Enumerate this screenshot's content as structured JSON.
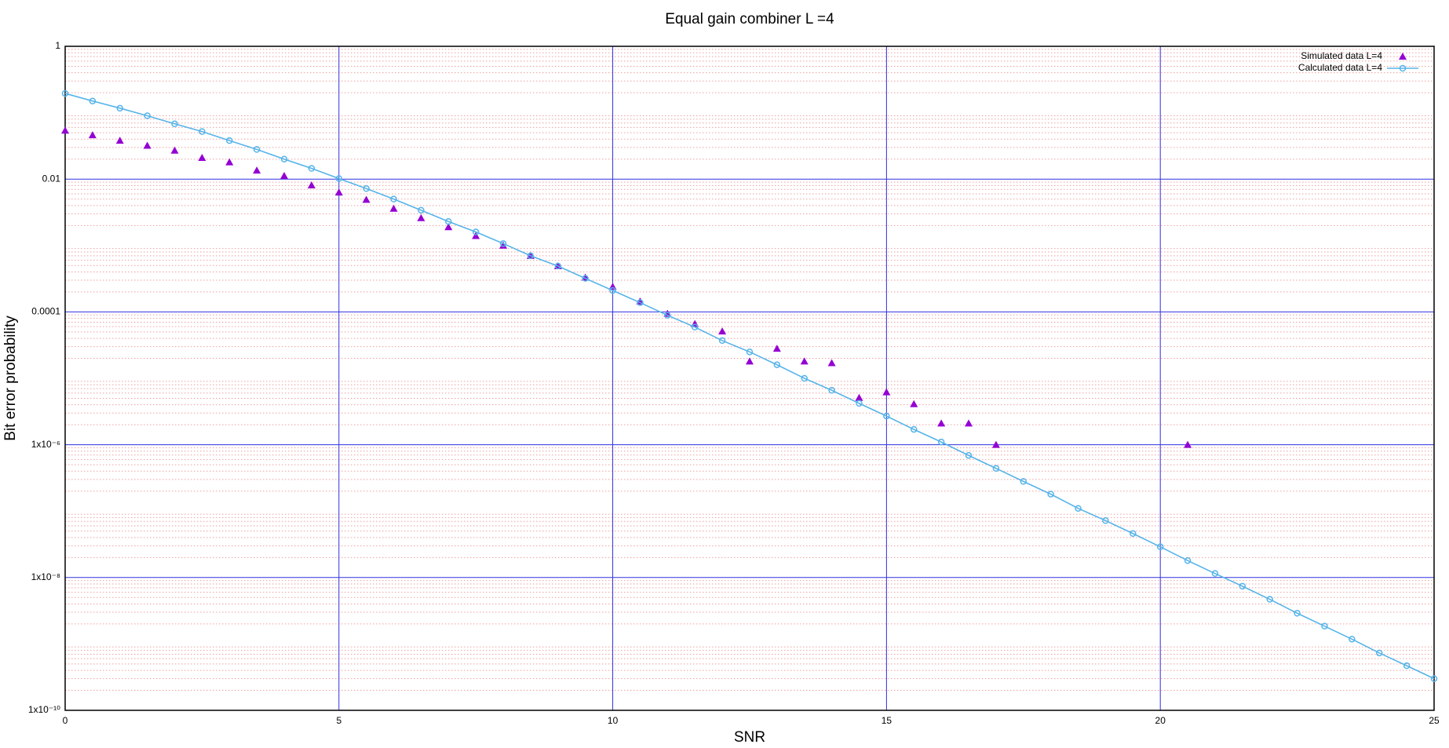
{
  "chart_data": {
    "type": "scatter",
    "title": "Equal gain combiner L =4",
    "x_label": "SNR",
    "y_label": "Bit error probability",
    "log_y": true,
    "grid": true,
    "minor_grid": true,
    "legend": "top-right",
    "xlim": [
      0,
      25
    ],
    "xticks": [
      0,
      5,
      10,
      15,
      20,
      25
    ],
    "ylim": [
      1e-10,
      1
    ],
    "yticks": [
      {
        "value": 1e-10,
        "label": "1x10⁻¹⁰"
      },
      {
        "value": 1e-08,
        "label": "1x10⁻⁸"
      },
      {
        "value": 1e-06,
        "label": "1x10⁻⁶"
      },
      0.0001,
      0.01,
      1
    ],
    "x": [
      0,
      0.5,
      1,
      1.5,
      2,
      2.5,
      3,
      3.5,
      4,
      4.5,
      5,
      5.5,
      6,
      6.5,
      7,
      7.5,
      8,
      8.5,
      9,
      9.5,
      10,
      10.5,
      11,
      11.5,
      12,
      12.5,
      13,
      13.5,
      14,
      14.5,
      15,
      15.5,
      16,
      16.5,
      17,
      17.5,
      18,
      18.5,
      19,
      19.5,
      20,
      20.5,
      21,
      21.5,
      22,
      22.5,
      23,
      23.5,
      24,
      24.5,
      25
    ],
    "series": [
      {
        "name": "Simulated data L=4",
        "color": "#9400d3",
        "marker": "triangle",
        "line": false,
        "values": [
          0.054,
          0.046,
          0.038,
          0.032,
          0.027,
          0.021,
          0.018,
          0.0135,
          0.0112,
          0.0081,
          0.0063,
          0.0049,
          0.0036,
          0.0026,
          0.0019,
          0.0014,
          0.001,
          0.0007,
          0.00049,
          0.00033,
          0.00024,
          0.000144,
          9.4e-05,
          6.6e-05,
          5.1e-05,
          1.8e-05,
          2.8e-05,
          1.8e-05,
          1.7e-05,
          5.1e-06,
          6.2e-06,
          4.1e-06,
          2.1e-06,
          2.1e-06,
          1e-06,
          null,
          null,
          null,
          null,
          null,
          null,
          1e-06,
          null,
          null,
          null,
          null,
          null,
          null,
          null,
          null,
          null
        ]
      },
      {
        "name": "Calculated data L=4",
        "color": "#56b4e9",
        "marker": "circle",
        "line": true,
        "values": [
          0.195,
          0.15,
          0.117,
          0.09,
          0.068,
          0.052,
          0.038,
          0.028,
          0.02,
          0.0145,
          0.0102,
          0.0072,
          0.005,
          0.0034,
          0.0023,
          0.0016,
          0.00107,
          0.0007,
          0.00049,
          0.00032,
          0.00021,
          0.000138,
          8.9e-05,
          5.9e-05,
          3.7e-05,
          2.5e-05,
          1.6e-05,
          1e-05,
          6.6e-06,
          4.2e-06,
          2.7e-06,
          1.7e-06,
          1.1e-06,
          6.9e-07,
          4.4e-07,
          2.8e-07,
          1.8e-07,
          1.1e-07,
          7.2e-08,
          4.6e-08,
          2.9e-08,
          1.8e-08,
          1.15e-08,
          7.4e-09,
          4.7e-09,
          2.9e-09,
          1.85e-09,
          1.18e-09,
          7.3e-10,
          4.7e-10,
          3e-10
        ]
      }
    ]
  }
}
